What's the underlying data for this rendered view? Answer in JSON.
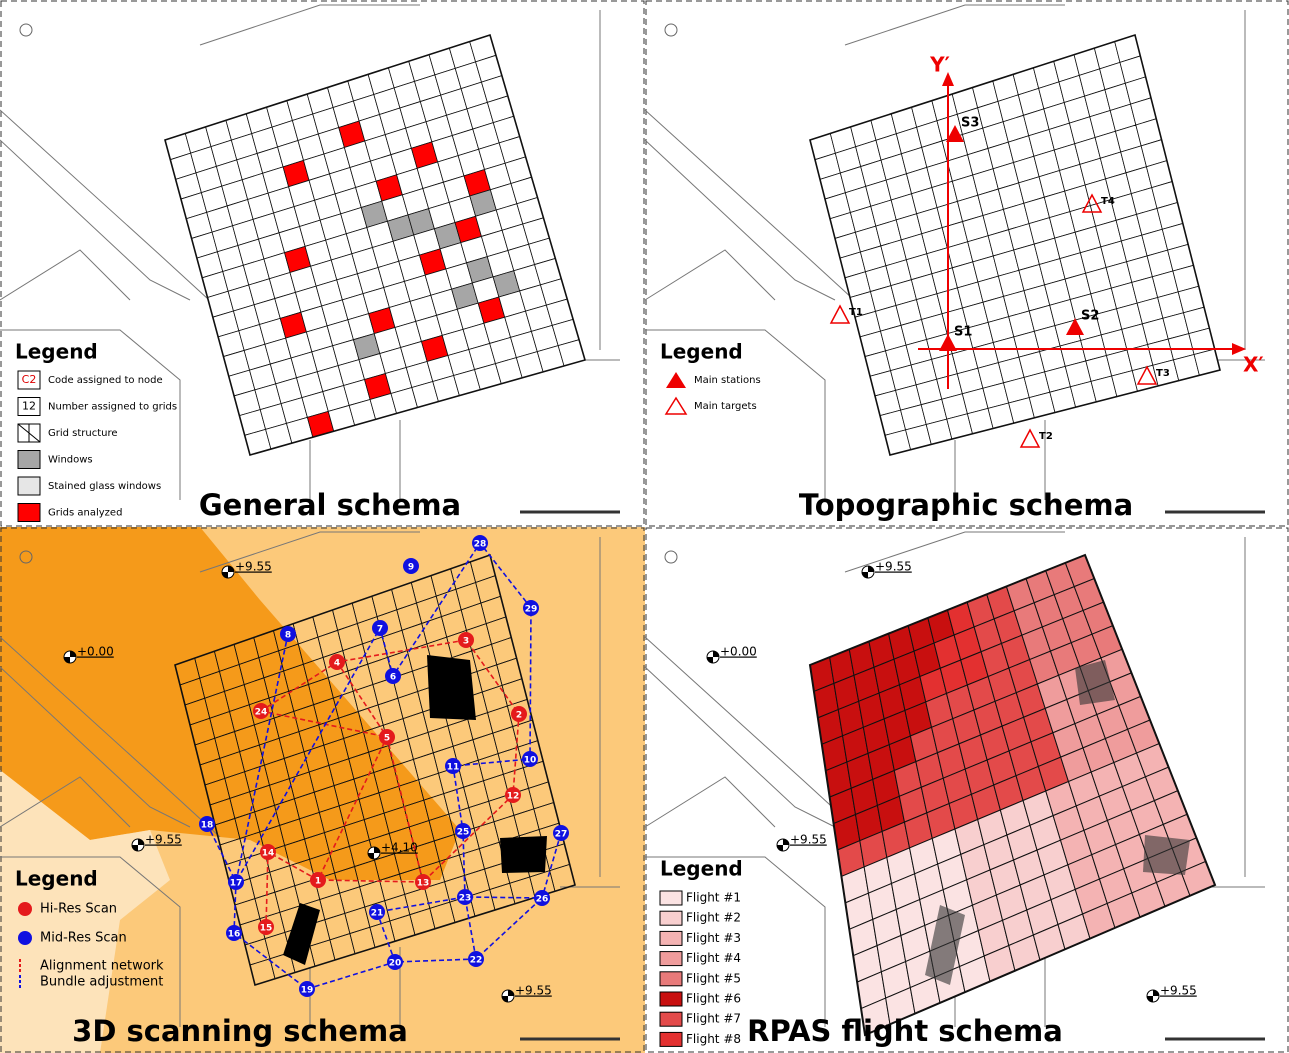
{
  "panels": [
    {
      "title": "General schema",
      "legend": {
        "title": "Legend",
        "items": [
          {
            "sample": "C2",
            "label": "Code assigned to node"
          },
          {
            "sample": "12",
            "label": "Number assigned to grids"
          },
          {
            "label": "Grid structure"
          },
          {
            "label": "Windows",
            "color": "#a6a6a6"
          },
          {
            "label": "Stained glass windows",
            "color": "#e6e6e6"
          },
          {
            "label": "Grids analyzed",
            "color": "#ff0000"
          }
        ]
      }
    },
    {
      "title": "Topographic schema",
      "legend": {
        "title": "Legend",
        "items": [
          {
            "label": "Main stations"
          },
          {
            "label": "Main targets"
          }
        ]
      },
      "axes": [
        "Y′",
        "X′"
      ],
      "stations": [
        "S1",
        "S2",
        "S3"
      ],
      "targets": [
        "T1",
        "T2",
        "T3",
        "T4"
      ]
    },
    {
      "title": "3D scanning schema",
      "legend": {
        "title": "Legend",
        "items": [
          {
            "label": "Hi-Res Scan",
            "color": "#e41a1c"
          },
          {
            "label": "Mid-Res Scan",
            "color": "#1010e0"
          },
          {
            "label": "Alignment network",
            "color": "#e41a1c"
          },
          {
            "label": "Bundle adjustment",
            "color": "#1010e0"
          }
        ]
      },
      "elevations": [
        "+0.00",
        "+9.55",
        "+9.55",
        "+4.10",
        "+9.55"
      ],
      "hi_res_scans": [
        "1",
        "2",
        "3",
        "4",
        "5",
        "12",
        "13",
        "14",
        "15",
        "24"
      ],
      "mid_res_scans": [
        "6",
        "7",
        "8",
        "9",
        "10",
        "11",
        "16",
        "17",
        "18",
        "19",
        "20",
        "21",
        "22",
        "23",
        "25",
        "26",
        "27",
        "28",
        "29"
      ]
    },
    {
      "title": "RPAS flight schema",
      "legend": {
        "title": "Legend",
        "items": [
          {
            "label": "Flight #1",
            "color": "#fbe3e3"
          },
          {
            "label": "Flight #2",
            "color": "#f8cfcf"
          },
          {
            "label": "Flight #3",
            "color": "#f4b3b3"
          },
          {
            "label": "Flight #4",
            "color": "#ef9c9c"
          },
          {
            "label": "Flight #5",
            "color": "#e87a7a"
          },
          {
            "label": "Flight #6",
            "color": "#c80f0f"
          },
          {
            "label": "Flight #7",
            "color": "#e34a4a"
          },
          {
            "label": "Flight #8",
            "color": "#e33030"
          }
        ]
      },
      "elevations": [
        "+0.00",
        "+9.55",
        "+9.55",
        "+9.55"
      ]
    }
  ]
}
